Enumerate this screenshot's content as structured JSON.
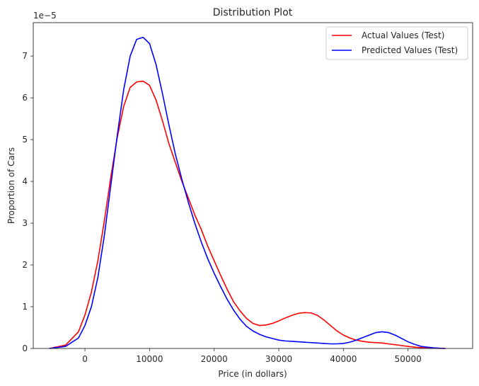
{
  "chart_data": {
    "type": "line",
    "title": "Distribution Plot",
    "xlabel": "Price (in dollars)",
    "ylabel": "Proportion of Cars",
    "y_offset_label": "1e−5",
    "xlim": [
      -8000,
      60000
    ],
    "ylim": [
      0,
      7.8
    ],
    "x_ticks": [
      0,
      10000,
      20000,
      30000,
      40000,
      50000
    ],
    "y_ticks": [
      0,
      1,
      2,
      3,
      4,
      5,
      6,
      7
    ],
    "grid": false,
    "legend_position": "top-right",
    "series": [
      {
        "name": "Actual Values (Test)",
        "color": "#ff0000",
        "x": [
          -5500,
          -3000,
          -1000,
          0,
          1000,
          2000,
          3000,
          4000,
          5000,
          6000,
          7000,
          8000,
          9000,
          10000,
          11000,
          12000,
          13000,
          14000,
          15000,
          16000,
          17000,
          18000,
          19000,
          20000,
          21000,
          22000,
          23000,
          24000,
          25000,
          26000,
          27000,
          28000,
          29000,
          30000,
          31000,
          32000,
          33000,
          34000,
          35000,
          36000,
          37000,
          38000,
          39000,
          40000,
          41000,
          42000,
          43000,
          44000,
          45000,
          46000,
          47000,
          48000,
          49000,
          50000,
          51000,
          52000,
          53000,
          54000,
          55000,
          55800
        ],
        "y": [
          0.0,
          0.08,
          0.4,
          0.8,
          1.35,
          2.1,
          3.05,
          4.1,
          5.05,
          5.8,
          6.25,
          6.38,
          6.4,
          6.3,
          5.95,
          5.45,
          4.9,
          4.45,
          4.0,
          3.6,
          3.2,
          2.85,
          2.45,
          2.1,
          1.75,
          1.42,
          1.12,
          0.9,
          0.72,
          0.6,
          0.55,
          0.56,
          0.6,
          0.66,
          0.73,
          0.79,
          0.84,
          0.86,
          0.85,
          0.79,
          0.68,
          0.55,
          0.42,
          0.32,
          0.25,
          0.2,
          0.17,
          0.15,
          0.14,
          0.13,
          0.11,
          0.09,
          0.07,
          0.05,
          0.03,
          0.02,
          0.01,
          0.005,
          0.002,
          0.0
        ]
      },
      {
        "name": "Predicted Values (Test)",
        "color": "#0000ff",
        "x": [
          -5500,
          -3000,
          -1000,
          0,
          1000,
          2000,
          3000,
          4000,
          5000,
          6000,
          7000,
          8000,
          9000,
          10000,
          11000,
          12000,
          13000,
          14000,
          15000,
          16000,
          17000,
          18000,
          19000,
          20000,
          21000,
          22000,
          23000,
          24000,
          25000,
          26000,
          27000,
          28000,
          29000,
          30000,
          31000,
          32000,
          33000,
          34000,
          35000,
          36000,
          37000,
          38000,
          39000,
          40000,
          41000,
          42000,
          43000,
          44000,
          45000,
          46000,
          47000,
          48000,
          49000,
          50000,
          51000,
          52000,
          53000,
          54000,
          55000,
          55800
        ],
        "y": [
          0.0,
          0.05,
          0.25,
          0.55,
          1.0,
          1.7,
          2.7,
          3.9,
          5.1,
          6.2,
          7.0,
          7.4,
          7.45,
          7.3,
          6.8,
          6.1,
          5.35,
          4.65,
          4.05,
          3.5,
          3.0,
          2.55,
          2.15,
          1.8,
          1.48,
          1.18,
          0.92,
          0.7,
          0.53,
          0.42,
          0.34,
          0.28,
          0.24,
          0.2,
          0.18,
          0.17,
          0.16,
          0.15,
          0.14,
          0.13,
          0.12,
          0.11,
          0.11,
          0.12,
          0.15,
          0.2,
          0.26,
          0.32,
          0.38,
          0.4,
          0.38,
          0.32,
          0.24,
          0.16,
          0.1,
          0.05,
          0.03,
          0.015,
          0.005,
          0.0
        ]
      }
    ]
  }
}
